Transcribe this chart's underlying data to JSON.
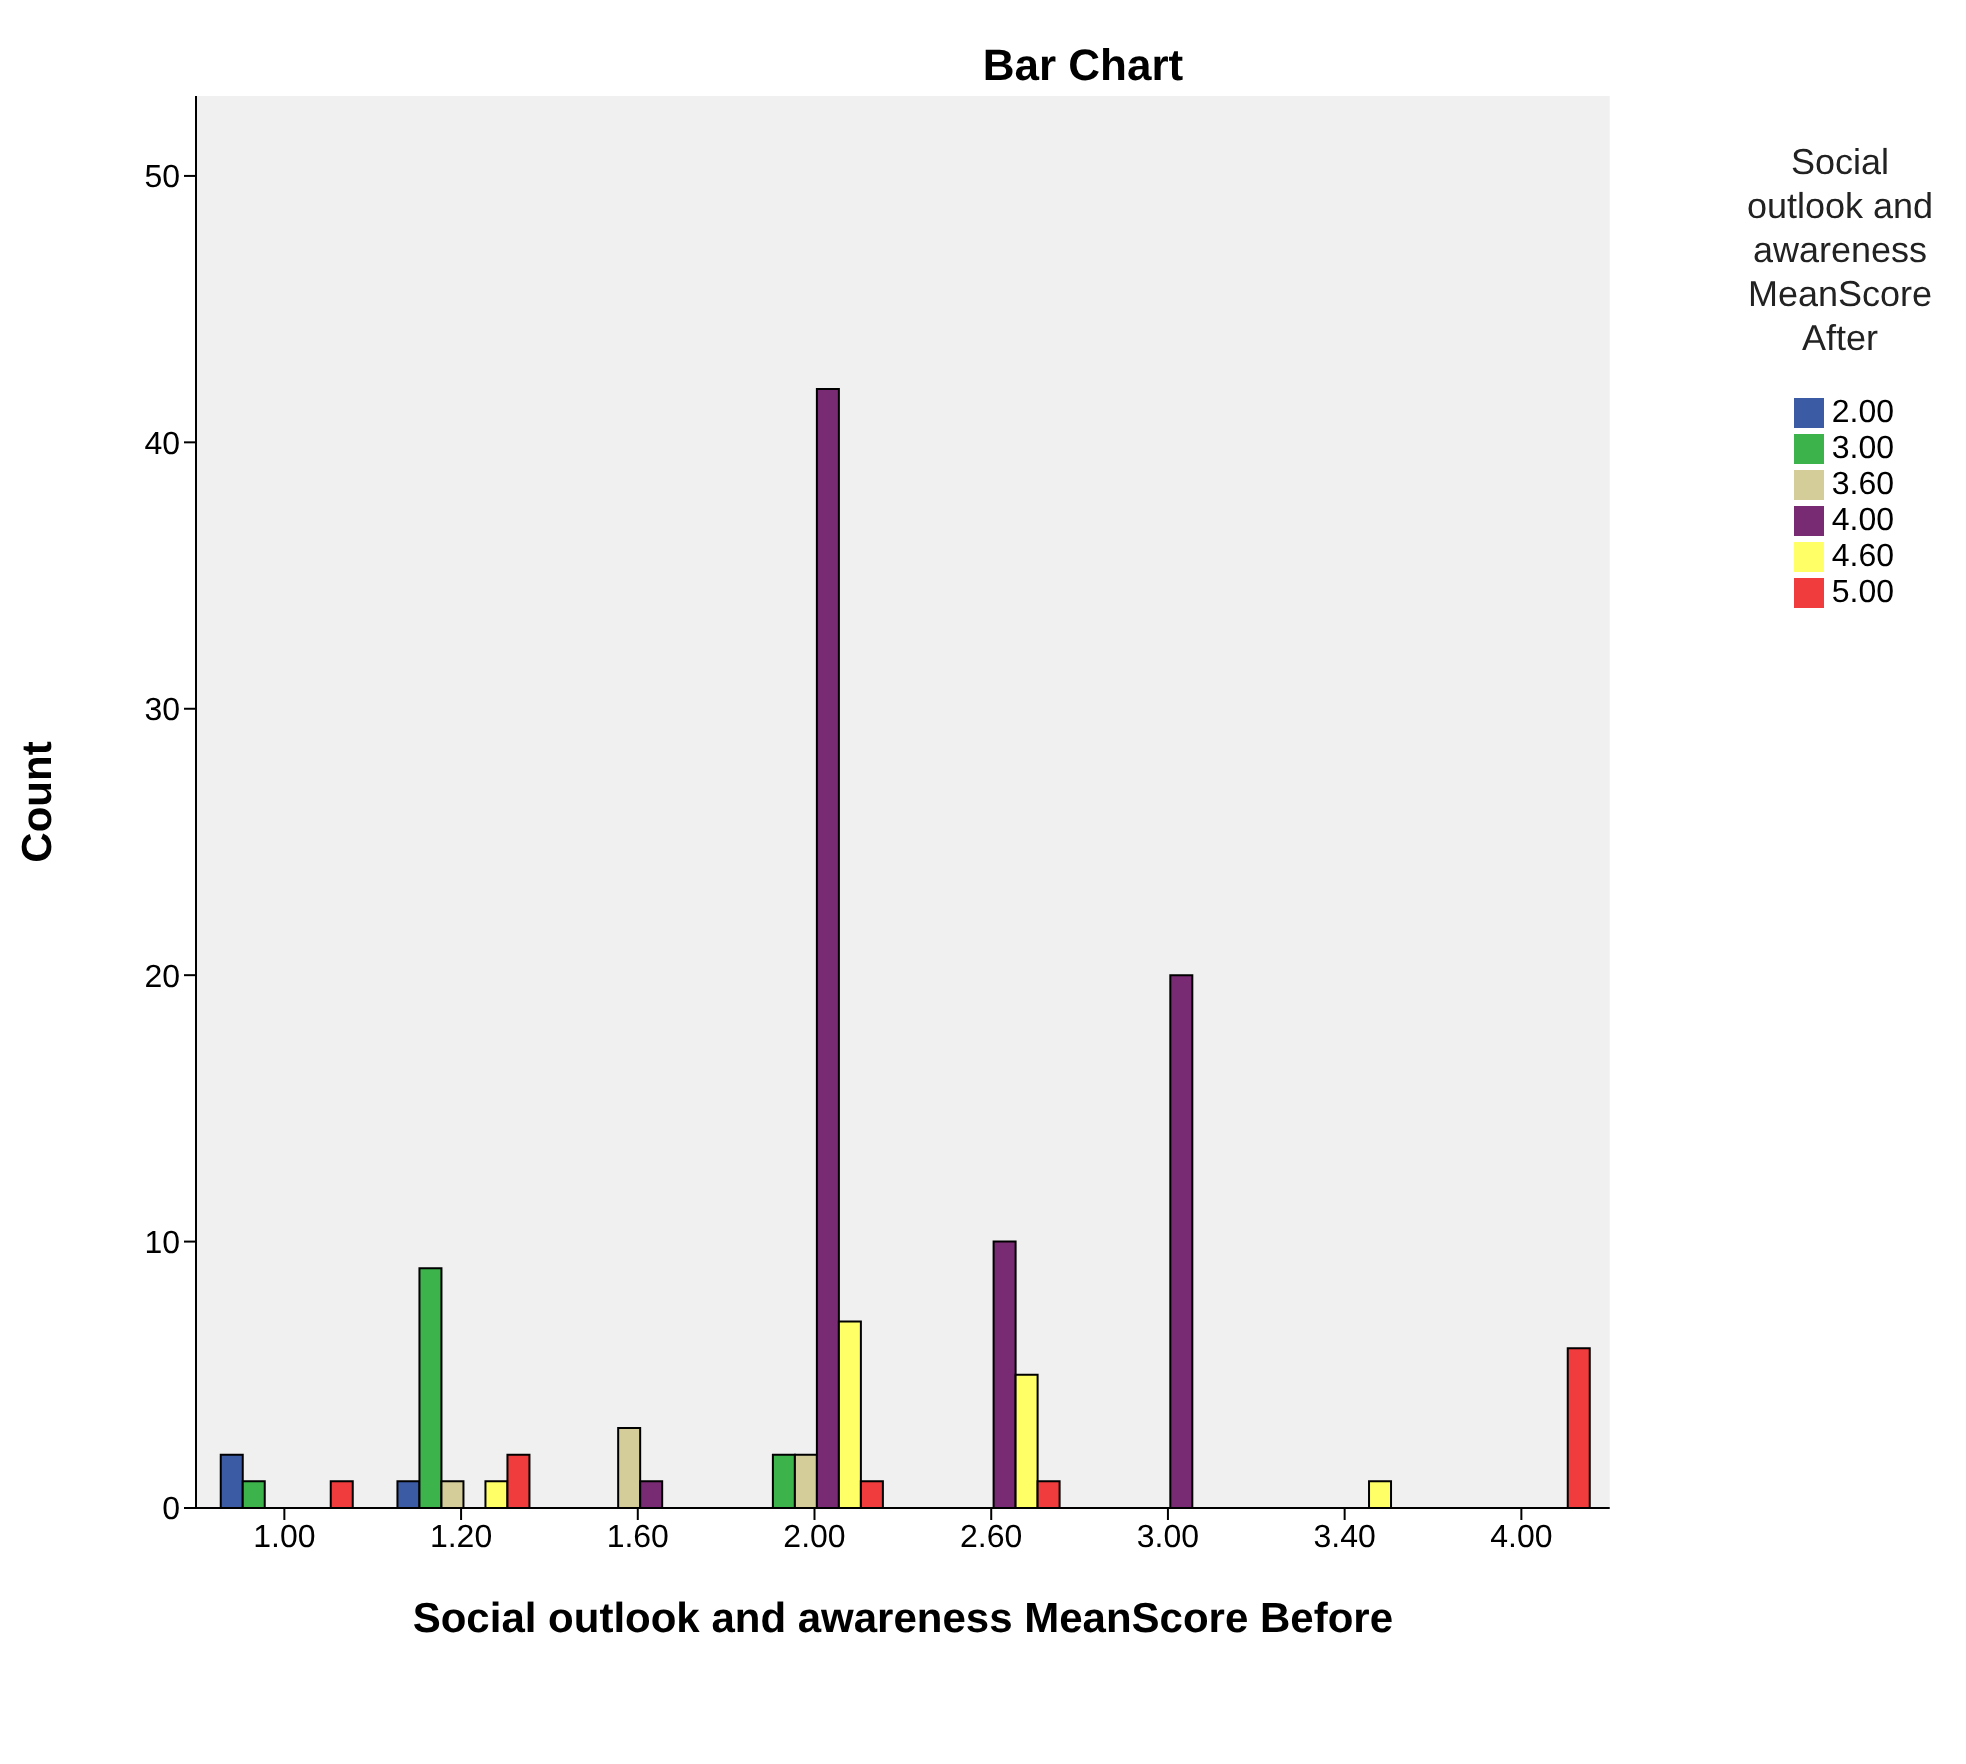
{
  "chart_data": {
    "type": "bar",
    "title": "Bar Chart",
    "xlabel": "Social outlook and awareness MeanScore Before",
    "ylabel": "Count",
    "legend_title": "Social outlook and awareness MeanScore After",
    "categories": [
      "1.00",
      "1.20",
      "1.60",
      "2.00",
      "2.60",
      "3.00",
      "3.40",
      "4.00"
    ],
    "series": [
      {
        "name": "2.00",
        "color": "#3b5ba5",
        "values": [
          2,
          1,
          0,
          0,
          0,
          0,
          0,
          0
        ]
      },
      {
        "name": "3.00",
        "color": "#3cb44b",
        "values": [
          1,
          9,
          0,
          2,
          0,
          0,
          0,
          0
        ]
      },
      {
        "name": "3.60",
        "color": "#d4cc99",
        "values": [
          0,
          1,
          3,
          2,
          0,
          0,
          0,
          0
        ]
      },
      {
        "name": "4.00",
        "color": "#782a72",
        "values": [
          0,
          0,
          1,
          42,
          10,
          20,
          0,
          0
        ]
      },
      {
        "name": "4.60",
        "color": "#ffff66",
        "values": [
          0,
          1,
          0,
          7,
          5,
          0,
          1,
          0
        ]
      },
      {
        "name": "5.00",
        "color": "#f03c3c",
        "values": [
          1,
          2,
          0,
          1,
          1,
          0,
          0,
          6
        ]
      }
    ],
    "ylim": [
      0,
      53
    ],
    "yticks": [
      0,
      10,
      20,
      30,
      40,
      50
    ],
    "grid": false,
    "legend": "top right"
  }
}
